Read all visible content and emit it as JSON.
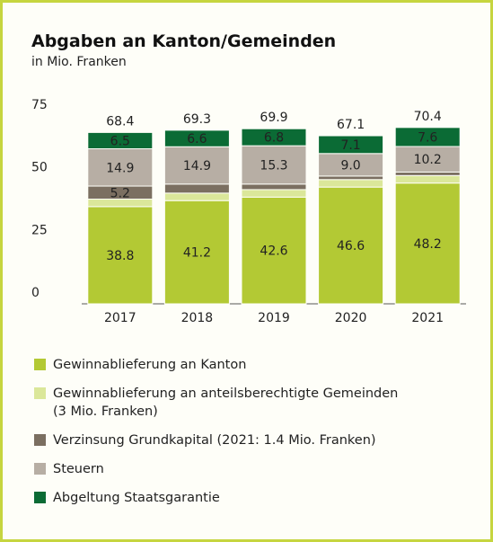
{
  "chart_data": {
    "type": "stacked-bar",
    "title": "Abgaben an Kanton/Gemeinden",
    "subtitle": "in Mio. Franken",
    "categories": [
      "2017",
      "2018",
      "2019",
      "2020",
      "2021"
    ],
    "series": [
      {
        "name": "Gewinnablieferung an Kanton",
        "color": "#b3c934",
        "values": [
          38.8,
          41.2,
          42.6,
          46.6,
          48.2
        ],
        "value_labels": [
          "38.8",
          "41.2",
          "42.6",
          "46.6",
          "48.2"
        ]
      },
      {
        "name": "Gewinnablieferung an anteilsberechtigte Gemeinden (3 Mio. Franken)",
        "color": "#dbe79a",
        "values": [
          3,
          3,
          3,
          3,
          3
        ]
      },
      {
        "name": "Verzinsung Grundkapital (2021: 1.4 Mio. Franken)",
        "color": "#7b6f61",
        "values": [
          5.2,
          3.6,
          2.2,
          1.4,
          1.4
        ],
        "value_labels": [
          "5.2",
          null,
          null,
          null,
          null
        ]
      },
      {
        "name": "Steuern",
        "color": "#b7aea4",
        "values": [
          14.9,
          14.9,
          15.3,
          9.0,
          10.2
        ],
        "value_labels": [
          "14.9",
          "14.9",
          "15.3",
          "9.0",
          "10.2"
        ]
      },
      {
        "name": "Abgeltung Staatsgarantie",
        "color": "#0b6b35",
        "values": [
          6.5,
          6.6,
          6.8,
          7.1,
          7.6
        ],
        "value_labels": [
          "6.5",
          "6.6",
          "6.8",
          "7.1",
          "7.6"
        ]
      }
    ],
    "totals": [
      68.4,
      69.3,
      69.9,
      67.1,
      70.4
    ],
    "ylim": [
      0,
      75
    ],
    "yticks": [
      0,
      25,
      50,
      75
    ],
    "grid": false
  }
}
